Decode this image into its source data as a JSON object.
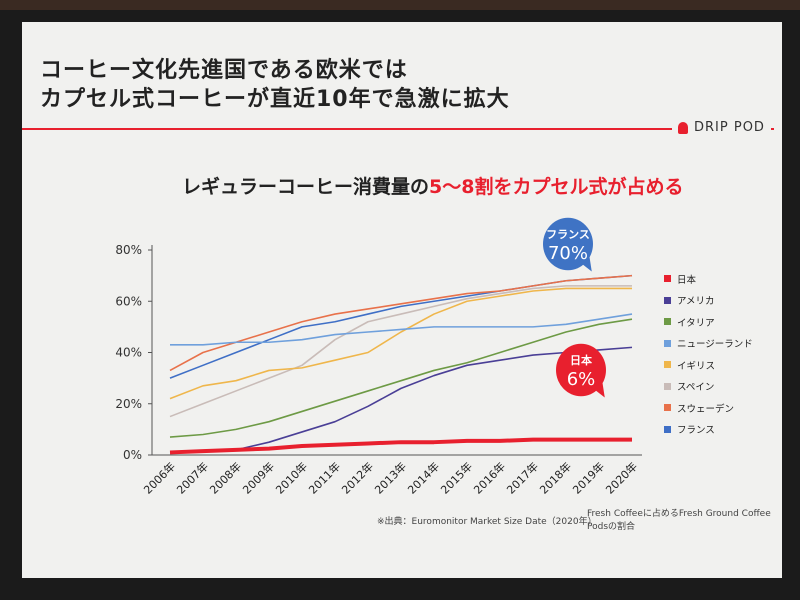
{
  "slide": {
    "title_line1": "コーヒー文化先進国である欧米では",
    "title_line2": "カプセル式コーヒーが直近10年で急激に拡大",
    "logo": "DRIP POD",
    "subtitle_prefix": "レギュラーコーヒー消費量の",
    "subtitle_highlight": "5～8割をカプセル式が占める",
    "source": "※出典：Euromonitor Market Size Date（2020年）",
    "note": "Fresh Coffeeに占めるFresh Ground Coffee Podsの割合",
    "callout_france_label": "フランス",
    "callout_france_value": "70%",
    "callout_japan_label": "日本",
    "callout_japan_value": "6%"
  },
  "colors": {
    "accent": "#e8202e",
    "france_callout": "#3f73c4"
  },
  "chart_data": {
    "type": "line",
    "title": "レギュラーコーヒー消費量の5～8割をカプセル式が占める",
    "xlabel": "",
    "ylabel": "",
    "ylim": [
      0,
      80
    ],
    "yticks": [
      "0%",
      "20%",
      "40%",
      "60%",
      "80%"
    ],
    "x": [
      "2006年",
      "2007年",
      "2008年",
      "2009年",
      "2010年",
      "2011年",
      "2012年",
      "2013年",
      "2014年",
      "2015年",
      "2016年",
      "2017年",
      "2018年",
      "2019年",
      "2020年"
    ],
    "legend_position": "right",
    "series": [
      {
        "name": "日本",
        "color": "#e8202e",
        "values": [
          1,
          1.5,
          2,
          2.5,
          3.5,
          4,
          4.5,
          5,
          5,
          5.5,
          5.5,
          6,
          6,
          6,
          6
        ]
      },
      {
        "name": "アメリカ",
        "color": "#4a3f96",
        "values": [
          1,
          1.5,
          2,
          5,
          9,
          13,
          19,
          26,
          31,
          35,
          37,
          39,
          40,
          41,
          42
        ]
      },
      {
        "name": "イタリア",
        "color": "#6d9a45",
        "values": [
          7,
          8,
          10,
          13,
          17,
          21,
          25,
          29,
          33,
          36,
          40,
          44,
          48,
          51,
          53
        ]
      },
      {
        "name": "ニュージーランド",
        "color": "#6fa0dc",
        "values": [
          43,
          43,
          44,
          44,
          45,
          47,
          48,
          49,
          50,
          50,
          50,
          50,
          51,
          53,
          55
        ]
      },
      {
        "name": "イギリス",
        "color": "#efb64b",
        "values": [
          22,
          27,
          29,
          33,
          34,
          37,
          40,
          48,
          55,
          60,
          62,
          64,
          65,
          65,
          65
        ]
      },
      {
        "name": "スペイン",
        "color": "#c9bcb8",
        "values": [
          15,
          20,
          25,
          30,
          35,
          45,
          52,
          55,
          58,
          61,
          63,
          65,
          66,
          66,
          66
        ]
      },
      {
        "name": "スウェーデン",
        "color": "#e8714a",
        "values": [
          33,
          40,
          44,
          48,
          52,
          55,
          57,
          59,
          61,
          63,
          64,
          66,
          68,
          69,
          70
        ]
      },
      {
        "name": "フランス",
        "color": "#3f6fc6",
        "values": [
          30,
          35,
          40,
          45,
          50,
          52,
          55,
          58,
          60,
          62,
          64,
          66,
          68,
          69,
          70
        ]
      }
    ]
  }
}
